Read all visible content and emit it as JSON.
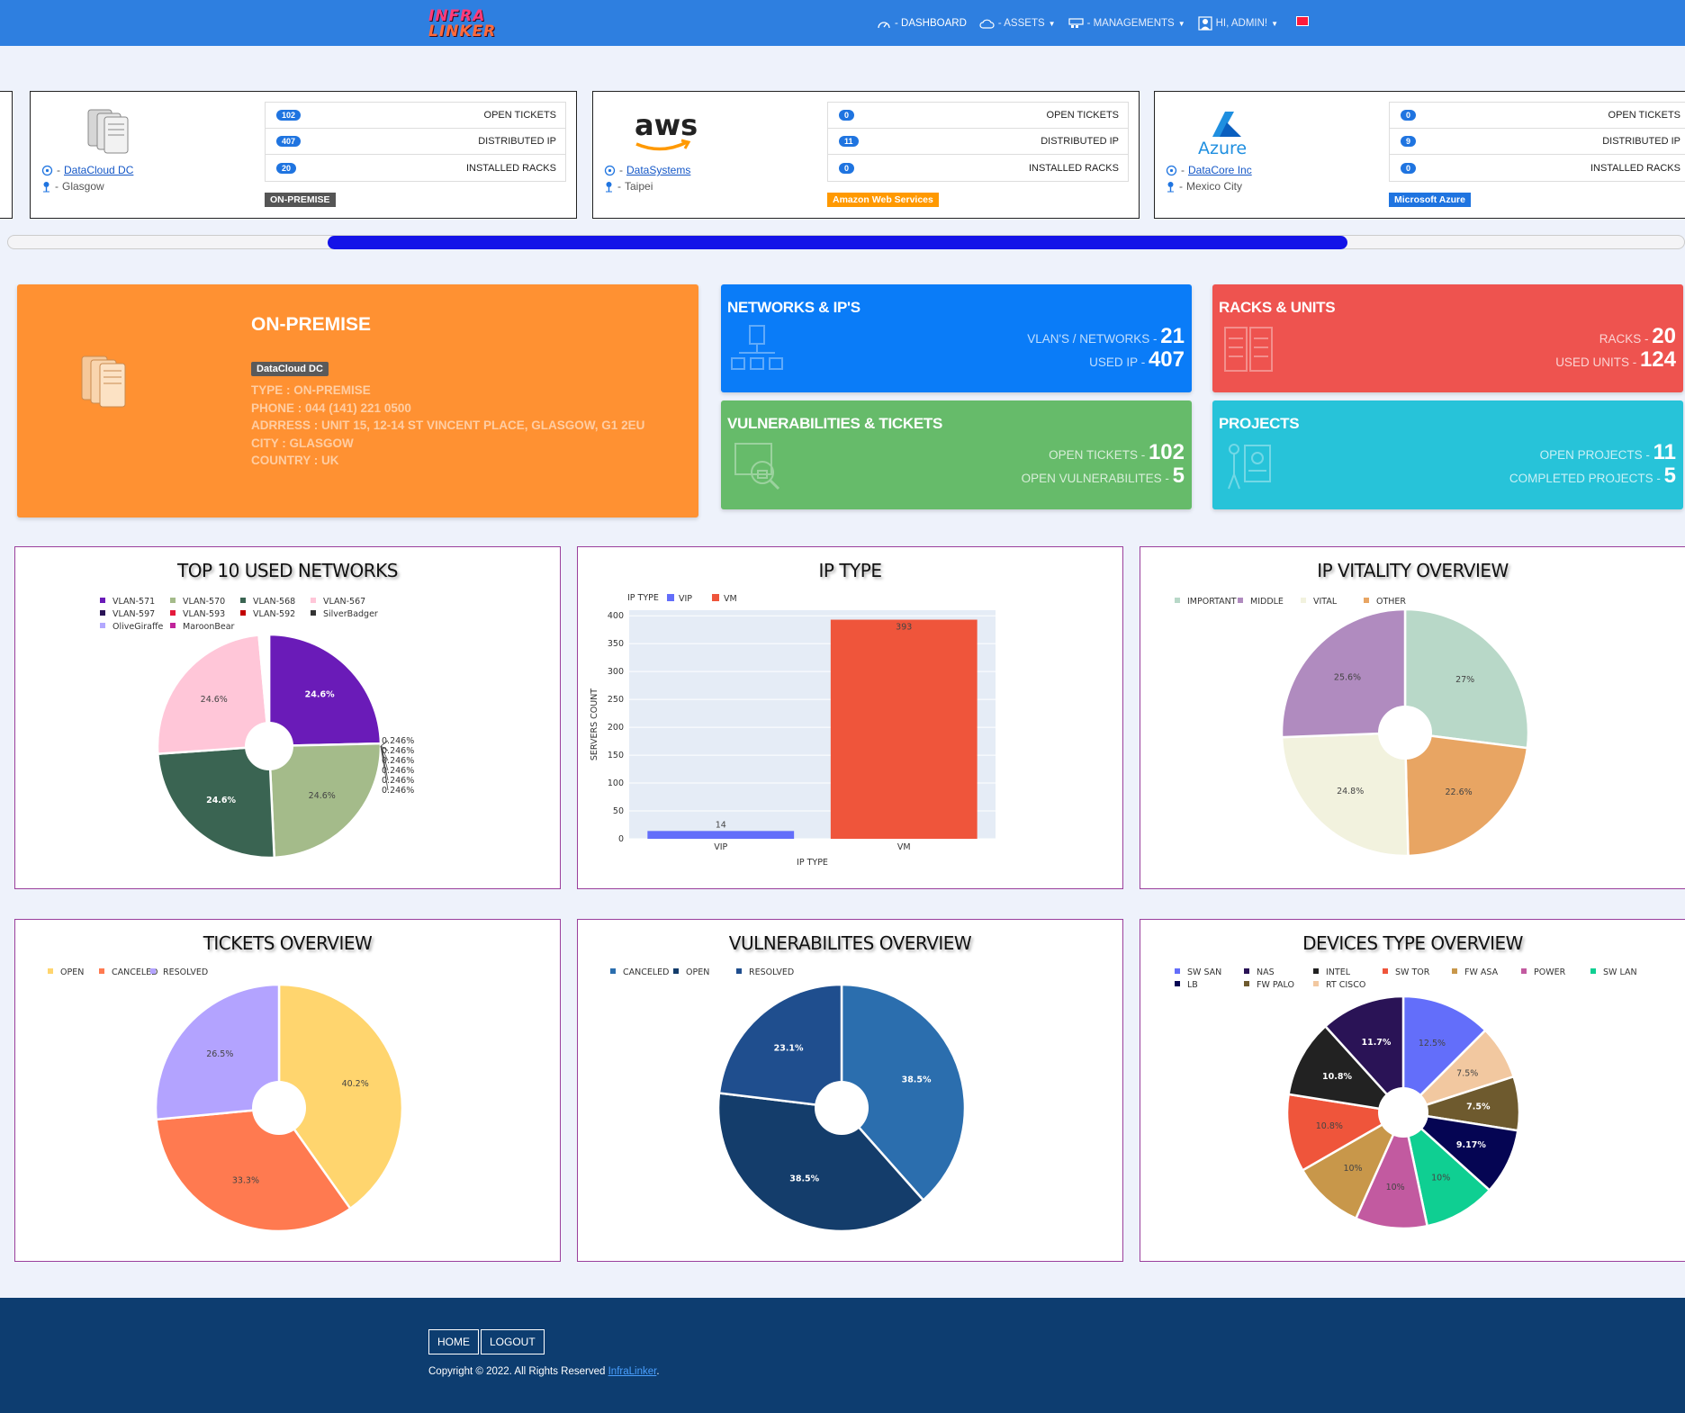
{
  "nav": {
    "logo_line1": "INFRA",
    "logo_line2": "LINKER",
    "items": [
      {
        "label": "- DASHBOARD",
        "icon": "speedometer-icon"
      },
      {
        "label": "- ASSETS",
        "icon": "cloud-icon"
      },
      {
        "label": "- MANAGEMENTS",
        "icon": "network-icon"
      },
      {
        "label": "HI, ADMIN!",
        "icon": "user-icon"
      }
    ]
  },
  "datacenters": [
    {
      "name": "DataCloud DC",
      "city": "Glasgow",
      "badge": "ON-PREMISE",
      "badge_color": "#555555",
      "stats": [
        {
          "count": "102",
          "label": "OPEN TICKETS"
        },
        {
          "count": "407",
          "label": "DISTRIBUTED IP"
        },
        {
          "count": "20",
          "label": "INSTALLED RACKS"
        }
      ]
    },
    {
      "name": "DataSystems",
      "city": "Taipei",
      "badge": "Amazon Web Services",
      "badge_color": "#ff9900",
      "logo_text": "aws",
      "stats": [
        {
          "count": "0",
          "label": "OPEN TICKETS"
        },
        {
          "count": "11",
          "label": "DISTRIBUTED IP"
        },
        {
          "count": "0",
          "label": "INSTALLED RACKS"
        }
      ]
    },
    {
      "name": "DataCore Inc",
      "city": "Mexico City",
      "badge": "Microsoft Azure",
      "badge_color": "#1f74e0",
      "logo_text": "Azure",
      "stats": [
        {
          "count": "0",
          "label": "OPEN TICKETS"
        },
        {
          "count": "9",
          "label": "DISTRIBUTED IP"
        },
        {
          "count": "0",
          "label": "INSTALLED RACKS"
        }
      ]
    }
  ],
  "onprem": {
    "title": "ON-PREMISE",
    "badge": "DataCloud DC",
    "type": "TYPE : ON-PREMISE",
    "phone": "PHONE : 044 (141) 221 0500",
    "address": "ADRRESS : UNIT 15, 12-14 ST VINCENT PLACE, GLASGOW, G1 2EU",
    "city": "CITY : GLASGOW",
    "country": "COUNTRY : UK"
  },
  "tiles": {
    "networks": {
      "title": "NETWORKS & IP'S",
      "l1": "VLAN'S / NETWORKS - ",
      "v1": "21",
      "l2": "USED IP - ",
      "v2": "407"
    },
    "racks": {
      "title": "RACKS & UNITS",
      "l1": "RACKS - ",
      "v1": "20",
      "l2": "USED UNITS - ",
      "v2": "124"
    },
    "vulns": {
      "title": "VULNERABILITIES & TICKETS",
      "l1": "OPEN TICKETS - ",
      "v1": "102",
      "l2": "OPEN VULNERABILITES - ",
      "v2": "5"
    },
    "projects": {
      "title": "PROJECTS",
      "l1": "OPEN PROJECTS - ",
      "v1": "11",
      "l2": "COMPLETED PROJECTS - ",
      "v2": "5"
    }
  },
  "chart_data": [
    {
      "id": "networks",
      "type": "pie",
      "title": "TOP 10 USED NETWORKS",
      "labels": [
        "VLAN-571",
        "VLAN-570",
        "VLAN-568",
        "VLAN-567",
        "VLAN-597",
        "VLAN-593",
        "VLAN-592",
        "SilverBadger",
        "OliveGiraffe",
        "MaroonBear"
      ],
      "values": [
        24.6,
        24.6,
        24.6,
        24.6,
        0.246,
        0.246,
        0.246,
        0.246,
        0.246,
        0.246
      ],
      "value_labels": [
        "24.6%",
        "24.6%",
        "24.6%",
        "24.6%",
        "0.246%",
        "0.246%",
        "0.246%",
        "0.246%",
        "0.246%",
        "0.246%"
      ],
      "colors": [
        "#6a1bb8",
        "#a4bb8a",
        "#3a6452",
        "#ffc6d8",
        "#2a1356",
        "#e41a3c",
        "#c20000",
        "#333333",
        "#b3a8ff",
        "#c0249a"
      ],
      "hole": true
    },
    {
      "id": "iptype",
      "type": "bar",
      "title": "IP TYPE",
      "legend_title": "IP TYPE",
      "categories": [
        "VIP",
        "VM"
      ],
      "values": [
        14,
        393
      ],
      "colors": [
        "#636efa",
        "#ef553b"
      ],
      "xlabel": "IP TYPE",
      "ylabel": "SERVERS COUNT",
      "ylim": [
        0,
        410
      ],
      "yticks": [
        0,
        50,
        100,
        150,
        200,
        250,
        300,
        350,
        400
      ]
    },
    {
      "id": "vitality",
      "type": "pie",
      "title": "IP VITALITY OVERVIEW",
      "labels": [
        "IMPORTANT",
        "MIDDLE",
        "VITAL",
        "OTHER"
      ],
      "values": [
        27,
        25.6,
        24.8,
        22.6
      ],
      "slice_order": [
        "IMPORTANT",
        "OTHER",
        "VITAL",
        "MIDDLE"
      ],
      "value_labels": [
        "27%",
        "25.6%",
        "24.8%",
        "22.6%"
      ],
      "colors": [
        "#b8d8c8",
        "#b08bbf",
        "#f2f2de",
        "#e8a563"
      ],
      "hole": true
    },
    {
      "id": "tickets",
      "type": "pie",
      "title": "TICKETS OVERVIEW",
      "labels": [
        "OPEN",
        "CANCELED",
        "RESOLVED"
      ],
      "values": [
        40.2,
        33.3,
        26.5
      ],
      "value_labels": [
        "40.2%",
        "33.3%",
        "26.5%"
      ],
      "colors": [
        "#ffd56e",
        "#ff7a50",
        "#b3a3ff"
      ],
      "hole": true
    },
    {
      "id": "vulns",
      "type": "pie",
      "title": "VULNERABILITES OVERVIEW",
      "labels": [
        "CANCELED",
        "OPEN",
        "RESOLVED"
      ],
      "values": [
        38.5,
        38.5,
        23.1
      ],
      "value_labels": [
        "38.5%",
        "38.5%",
        "23.1%"
      ],
      "colors": [
        "#2b6eae",
        "#143d6b",
        "#1f4e8e"
      ],
      "hole": true
    },
    {
      "id": "devices",
      "type": "pie",
      "title": "DEVICES TYPE OVERVIEW",
      "labels": [
        "SW SAN",
        "NAS",
        "INTEL",
        "SW TOR",
        "FW ASA",
        "POWER",
        "SW LAN",
        "LB",
        "FW PALO",
        "RT CISCO"
      ],
      "values": [
        12.5,
        11.7,
        10.8,
        10.8,
        10,
        10,
        10,
        9.17,
        7.5,
        7.5
      ],
      "slice_order": [
        "SW SAN",
        "RT CISCO",
        "FW PALO",
        "LB",
        "SW LAN",
        "POWER",
        "FW ASA",
        "SW TOR",
        "INTEL",
        "NAS"
      ],
      "value_labels": [
        "12.5%",
        "11.7%",
        "10.8%",
        "10.8%",
        "10%",
        "10%",
        "10%",
        "9.17%",
        "7.5%",
        "7.5%"
      ],
      "colors": [
        "#636efa",
        "#2a1356",
        "#222222",
        "#ef553b",
        "#c8974a",
        "#c25aa0",
        "#0fcf92",
        "#050553",
        "#6e5a2e",
        "#f2c8a0"
      ],
      "hole": true
    }
  ],
  "footer": {
    "home": "HOME",
    "logout": "LOGOUT",
    "copyright": "Copyright © 2022. All Rights Reserved ",
    "brand": "InfraLinker",
    "period": "."
  }
}
